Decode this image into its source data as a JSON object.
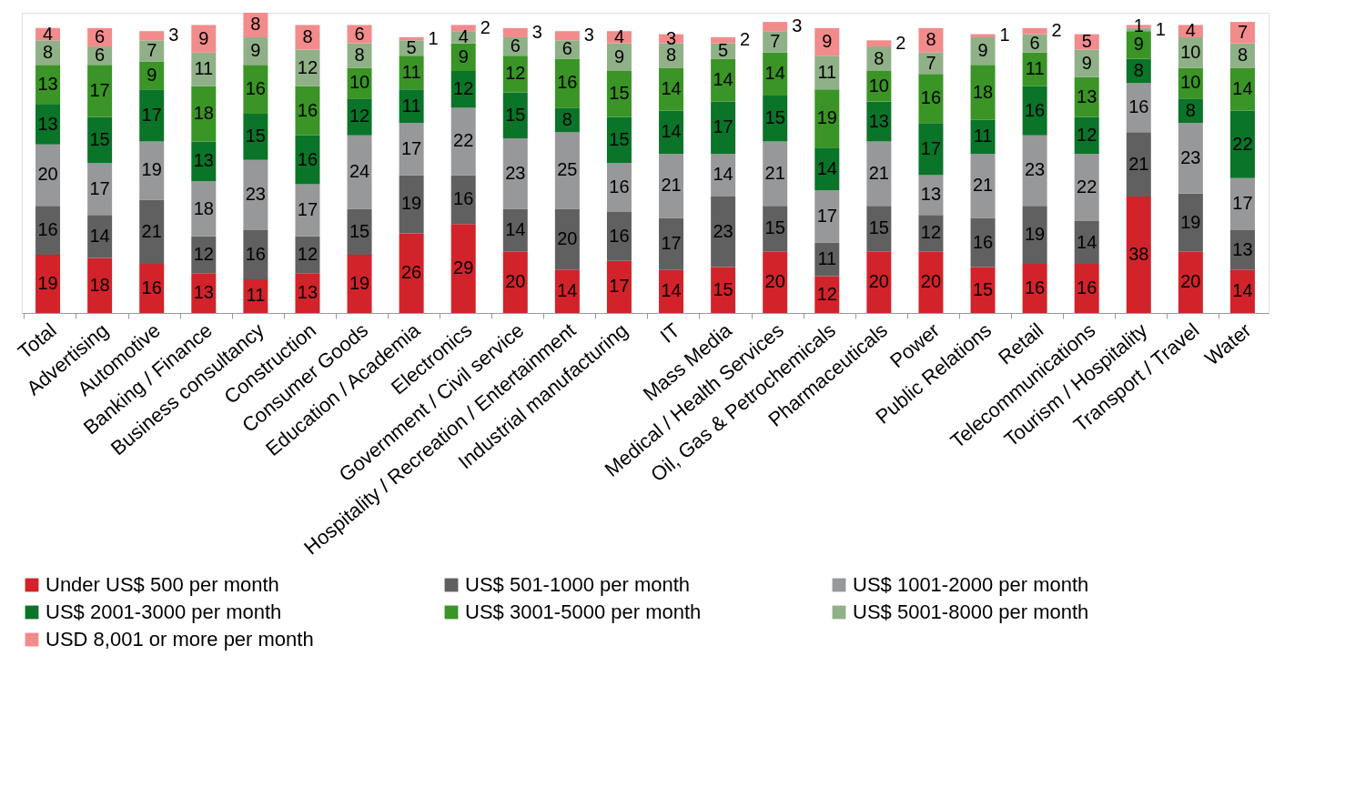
{
  "chart_data": {
    "type": "bar",
    "stacked": true,
    "data_labels": true,
    "legend": "bottom",
    "categories": [
      "Total",
      "Advertising",
      "Automotive",
      "Banking / Finance",
      "Business consultancy",
      "Construction",
      "Consumer Goods",
      "Education / Academia",
      "Electronics",
      "Government / Civil service",
      "Hospitality / Recreation / Entertainment",
      "Industrial manufacturing",
      "IT",
      "Mass Media",
      "Medical / Health Services",
      "Oil, Gas & Petrochemicals",
      "Pharmaceuticals",
      "Power",
      "Public Relations",
      "Retail",
      "Telecommunications",
      "Tourism / Hospitality",
      "Transport / Travel",
      "Water"
    ],
    "series": [
      {
        "name": "Under US$ 500 per month",
        "color": "#d2232a",
        "values": [
          19,
          18,
          16,
          13,
          11,
          13,
          19,
          26,
          29,
          20,
          14,
          17,
          14,
          15,
          20,
          12,
          20,
          20,
          15,
          16,
          16,
          38,
          20,
          14
        ]
      },
      {
        "name": "US$ 501-1000 per month",
        "color": "#606060",
        "values": [
          16,
          14,
          21,
          12,
          16,
          12,
          15,
          19,
          16,
          14,
          20,
          16,
          17,
          23,
          15,
          11,
          15,
          12,
          16,
          19,
          14,
          21,
          19,
          13
        ]
      },
      {
        "name": "US$ 1001-2000 per month",
        "color": "#97989a",
        "values": [
          20,
          17,
          19,
          18,
          23,
          17,
          24,
          17,
          22,
          23,
          25,
          16,
          21,
          14,
          21,
          17,
          21,
          13,
          21,
          23,
          22,
          16,
          23,
          17
        ]
      },
      {
        "name": "US$ 2001-3000 per month",
        "color": "#0a7428",
        "values": [
          13,
          15,
          17,
          13,
          15,
          16,
          12,
          11,
          12,
          15,
          8,
          15,
          14,
          17,
          15,
          14,
          13,
          17,
          11,
          16,
          12,
          8,
          8,
          22
        ]
      },
      {
        "name": "US$ 3001-5000 per month",
        "color": "#3a9426",
        "values": [
          13,
          17,
          9,
          18,
          16,
          16,
          10,
          11,
          9,
          12,
          16,
          15,
          14,
          14,
          14,
          19,
          10,
          16,
          18,
          11,
          13,
          9,
          10,
          14
        ]
      },
      {
        "name": "US$ 5001-8000 per month",
        "color": "#90b088",
        "values": [
          8,
          6,
          7,
          11,
          9,
          12,
          8,
          5,
          4,
          6,
          6,
          9,
          8,
          5,
          7,
          11,
          8,
          7,
          9,
          6,
          9,
          1,
          10,
          8
        ]
      },
      {
        "name": "USD 8,001 or more per month",
        "color": "#f28b8b",
        "values": [
          4,
          6,
          3,
          9,
          8,
          8,
          6,
          1,
          2,
          3,
          3,
          4,
          3,
          2,
          3,
          9,
          2,
          8,
          1,
          2,
          5,
          1,
          4,
          7
        ]
      }
    ]
  }
}
